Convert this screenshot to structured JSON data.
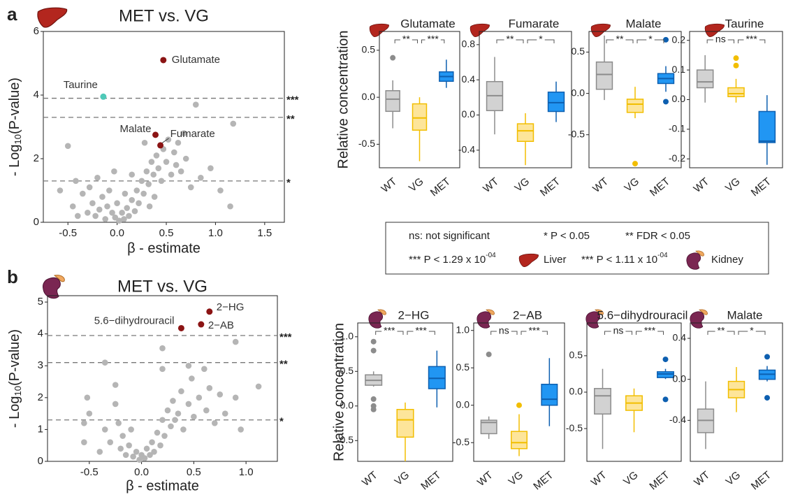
{
  "panel_labels": [
    "a",
    "b"
  ],
  "legend": {
    "items": [
      {
        "text": "ns: not significant"
      },
      {
        "text": "* P < 0.05"
      },
      {
        "text": "** FDR < 0.05"
      },
      {
        "text": "*** P < 1.29 x 10",
        "sup": "-04"
      },
      {
        "text": "Liver"
      },
      {
        "text": "*** P < 1.11 x 10",
        "sup": "-04"
      },
      {
        "text": "Kidney"
      }
    ]
  },
  "chart_data": [
    {
      "type": "volcano",
      "title": "MET vs. VG",
      "xlabel": "β - estimate",
      "ylabel": {
        "text": "- Log",
        "sub": "10",
        "rest": "(P-value)"
      },
      "xlim": [
        -0.75,
        1.7
      ],
      "ylim": [
        0,
        6
      ],
      "xticks": [
        -0.5,
        {
          "value": 0,
          "label": "0.0"
        },
        0.5,
        {
          "value": 1,
          "label": "1.0"
        },
        1.5
      ],
      "yticks": [
        0,
        2,
        4,
        6
      ],
      "thresholds": [
        {
          "y": 3.9,
          "label": "***"
        },
        {
          "y": 3.3,
          "label": "**"
        },
        {
          "y": 1.3,
          "label": "*"
        }
      ],
      "point_color": "#b5b5b5",
      "points": {
        "x": [
          -0.45,
          -0.4,
          -0.35,
          -0.3,
          -0.28,
          -0.25,
          -0.22,
          -0.2,
          -0.18,
          -0.15,
          -0.12,
          -0.1,
          -0.08,
          -0.05,
          -0.02,
          0.0,
          0.02,
          0.05,
          0.07,
          0.1,
          0.12,
          0.15,
          0.18,
          0.2,
          0.22,
          0.25,
          0.27,
          0.3,
          0.32,
          0.35,
          0.37,
          0.4,
          0.42,
          0.45,
          0.47,
          0.5,
          0.52,
          0.55,
          0.58,
          0.6,
          0.62,
          0.65,
          0.7,
          0.75,
          0.8,
          0.85,
          0.95,
          1.05,
          1.15,
          1.18,
          -0.5,
          -0.58,
          -0.42,
          0.28,
          0.33,
          0.38,
          0.15,
          0.08,
          -0.03,
          0.68
        ],
        "y": [
          0.5,
          0.2,
          0.9,
          0.3,
          1.1,
          0.6,
          0.2,
          1.4,
          0.4,
          0.8,
          0.1,
          0.5,
          1.0,
          0.3,
          0.15,
          0.6,
          0.05,
          0.3,
          0.1,
          0.45,
          0.2,
          0.7,
          0.35,
          1.0,
          0.6,
          1.3,
          0.9,
          1.6,
          1.2,
          1.9,
          1.5,
          2.1,
          1.7,
          1.3,
          2.3,
          1.9,
          2.6,
          1.5,
          2.2,
          1.8,
          2.5,
          1.6,
          2.0,
          1.1,
          3.7,
          1.4,
          1.7,
          1.0,
          0.5,
          3.1,
          2.4,
          1.0,
          1.3,
          2.5,
          0.5,
          0.8,
          1.5,
          0.9,
          1.6,
          2.8
        ]
      },
      "highlights": [
        {
          "name": "Glutamate",
          "x": 0.47,
          "y": 5.1,
          "color": "#8b1414"
        },
        {
          "name": "Taurine",
          "x": -0.14,
          "y": 3.95,
          "color": "#4fc9b8"
        },
        {
          "name": "Malate",
          "x": 0.39,
          "y": 2.75,
          "color": "#8b1414"
        },
        {
          "name": "Fumarate",
          "x": 0.44,
          "y": 2.42,
          "color": "#8b1414"
        }
      ]
    },
    {
      "type": "box",
      "title": "Glutamate",
      "ylabel": "Relative concentration",
      "categories": [
        "WT",
        "VG",
        "MET"
      ],
      "fill": [
        "#d2d2d2",
        "#fde59a",
        "#2196f3"
      ],
      "edge": [
        "#8c8c8c",
        "#f2be00",
        "#0d5fb0"
      ],
      "ylim": [
        -0.75,
        0.7
      ],
      "yticks": [
        -0.5,
        {
          "value": 0,
          "label": "0.0"
        },
        0.5
      ],
      "brackets": [
        "**",
        "***"
      ],
      "boxes": [
        {
          "whislo": -0.33,
          "q1": -0.15,
          "med": -0.02,
          "q3": 0.07,
          "whishi": 0.18,
          "fliers": [
            0.42
          ]
        },
        {
          "whislo": -0.68,
          "q1": -0.35,
          "med": -0.22,
          "q3": -0.07,
          "whishi": 0.0,
          "fliers": []
        },
        {
          "whislo": 0.1,
          "q1": 0.17,
          "med": 0.22,
          "q3": 0.27,
          "whishi": 0.4,
          "fliers": []
        }
      ]
    },
    {
      "type": "box",
      "title": "Fumarate",
      "categories": [
        "WT",
        "VG",
        "MET"
      ],
      "fill": [
        "#d2d2d2",
        "#fde59a",
        "#2196f3"
      ],
      "edge": [
        "#8c8c8c",
        "#f2be00",
        "#0d5fb0"
      ],
      "ylim": [
        -0.6,
        0.95
      ],
      "yticks": [
        -0.4,
        {
          "value": 0,
          "label": "0.0"
        },
        0.4,
        0.8
      ],
      "brackets": [
        "**",
        "*"
      ],
      "boxes": [
        {
          "whislo": -0.22,
          "q1": 0.05,
          "med": 0.22,
          "q3": 0.38,
          "whishi": 0.66,
          "fliers": []
        },
        {
          "whislo": -0.57,
          "q1": -0.3,
          "med": -0.18,
          "q3": -0.1,
          "whishi": 0.02,
          "fliers": []
        },
        {
          "whislo": -0.08,
          "q1": 0.04,
          "med": 0.14,
          "q3": 0.26,
          "whishi": 0.38,
          "fliers": []
        }
      ]
    },
    {
      "type": "box",
      "title": "Malate",
      "categories": [
        "WT",
        "VG",
        "MET"
      ],
      "fill": [
        "#d2d2d2",
        "#fde59a",
        "#2196f3"
      ],
      "edge": [
        "#8c8c8c",
        "#f2be00",
        "#0d5fb0"
      ],
      "ylim": [
        -0.9,
        0.75
      ],
      "yticks": [
        -0.5,
        {
          "value": 0,
          "label": "0.0"
        },
        0.5
      ],
      "brackets": [
        "**",
        "*"
      ],
      "boxes": [
        {
          "whislo": -0.08,
          "q1": 0.05,
          "med": 0.23,
          "q3": 0.38,
          "whishi": 0.7,
          "fliers": []
        },
        {
          "whislo": -0.3,
          "q1": -0.23,
          "med": -0.13,
          "q3": -0.07,
          "whishi": 0.08,
          "fliers": [
            -0.85
          ]
        },
        {
          "whislo": 0.02,
          "q1": 0.12,
          "med": 0.18,
          "q3": 0.24,
          "whishi": 0.33,
          "fliers": [
            0.65,
            -0.1
          ]
        }
      ]
    },
    {
      "type": "box",
      "title": "Taurine",
      "categories": [
        "WT",
        "VG",
        "MET"
      ],
      "fill": [
        "#d2d2d2",
        "#fde59a",
        "#2196f3"
      ],
      "edge": [
        "#8c8c8c",
        "#f2be00",
        "#0d5fb0"
      ],
      "ylim": [
        -0.23,
        0.23
      ],
      "yticks": [
        -0.2,
        -0.1,
        {
          "value": 0,
          "label": "0.0"
        },
        0.1,
        0.2
      ],
      "brackets": [
        "ns",
        "***"
      ],
      "boxes": [
        {
          "whislo": -0.01,
          "q1": 0.04,
          "med": 0.06,
          "q3": 0.1,
          "whishi": 0.15,
          "fliers": []
        },
        {
          "whislo": -0.01,
          "q1": 0.01,
          "med": 0.02,
          "q3": 0.04,
          "whishi": 0.07,
          "fliers": [
            0.115,
            0.14
          ]
        },
        {
          "whislo": -0.22,
          "q1": -0.145,
          "med": -0.14,
          "q3": -0.04,
          "whishi": 0.015,
          "fliers": []
        }
      ]
    },
    {
      "type": "volcano",
      "title": "MET vs. VG",
      "xlabel": "β - estimate",
      "ylabel": {
        "text": "- Log",
        "sub": "10",
        "rest": "(P-value)"
      },
      "xlim": [
        -0.9,
        1.3
      ],
      "ylim": [
        0,
        5.2
      ],
      "xticks": [
        -0.5,
        {
          "value": 0,
          "label": "0.0"
        },
        0.5,
        {
          "value": 1,
          "label": "1.0"
        }
      ],
      "yticks": [
        0,
        1,
        2,
        3,
        4,
        5
      ],
      "thresholds": [
        {
          "y": 3.95,
          "label": "***"
        },
        {
          "y": 3.1,
          "label": "**"
        },
        {
          "y": 1.3,
          "label": "*"
        }
      ],
      "point_color": "#b5b5b5",
      "points": {
        "x": [
          -0.55,
          -0.55,
          -0.52,
          -0.5,
          -0.4,
          -0.35,
          -0.3,
          -0.25,
          -0.22,
          -0.2,
          -0.18,
          -0.15,
          -0.12,
          -0.1,
          -0.08,
          -0.05,
          -0.02,
          0.0,
          0.03,
          0.05,
          0.08,
          0.1,
          0.12,
          0.15,
          0.18,
          0.2,
          0.22,
          0.25,
          0.28,
          0.3,
          0.32,
          0.35,
          0.38,
          0.4,
          0.45,
          0.48,
          0.5,
          0.55,
          0.6,
          0.62,
          0.65,
          0.7,
          0.75,
          0.8,
          0.9,
          0.9,
          0.95,
          1.12,
          0.2,
          0.2,
          -0.35,
          0.45,
          -0.25
        ],
        "y": [
          1.2,
          0.6,
          2.0,
          1.5,
          0.3,
          1.0,
          0.6,
          1.8,
          1.2,
          0.4,
          0.8,
          0.2,
          0.5,
          1.0,
          0.15,
          0.3,
          0.05,
          0.2,
          0.1,
          0.4,
          0.2,
          0.6,
          0.3,
          0.9,
          0.5,
          1.3,
          0.8,
          1.6,
          1.1,
          1.9,
          1.3,
          1.5,
          2.2,
          1.0,
          1.8,
          2.6,
          1.4,
          2.0,
          2.9,
          1.6,
          2.3,
          1.2,
          2.1,
          1.5,
          3.75,
          2.0,
          1.0,
          2.35,
          3.55,
          2.9,
          3.1,
          3.0,
          2.4
        ]
      },
      "highlights": [
        {
          "name": "2−HG",
          "x": 0.65,
          "y": 4.7,
          "color": "#8b1414"
        },
        {
          "name": "2−AB",
          "x": 0.57,
          "y": 4.3,
          "color": "#8b1414"
        },
        {
          "name": "5.6−dihydrouracil",
          "x": 0.38,
          "y": 4.18,
          "color": "#8b1414"
        }
      ]
    },
    {
      "type": "box",
      "title": "2−HG",
      "ylabel": "Relative concentration",
      "categories": [
        "WT",
        "VG",
        "MET"
      ],
      "fill": [
        "#d2d2d2",
        "#fde59a",
        "#2196f3"
      ],
      "edge": [
        "#8c8c8c",
        "#f2be00",
        "#0d5fb0"
      ],
      "ylim": [
        -0.8,
        1.2
      ],
      "yticks": [
        -0.5,
        {
          "value": 0,
          "label": "0.0"
        },
        0.5,
        {
          "value": 1,
          "label": "1.0"
        }
      ],
      "brackets": [
        "***",
        "***"
      ],
      "boxes": [
        {
          "whislo": 0.28,
          "q1": 0.3,
          "med": 0.37,
          "q3": 0.45,
          "whishi": 0.5,
          "fliers": [
            0.93,
            0.8,
            0.1,
            0.0,
            -0.05
          ]
        },
        {
          "whislo": -0.8,
          "q1": -0.45,
          "med": -0.2,
          "q3": -0.05,
          "whishi": 0.05,
          "fliers": []
        },
        {
          "whislo": -0.02,
          "q1": 0.25,
          "med": 0.4,
          "q3": 0.57,
          "whishi": 0.8,
          "fliers": []
        }
      ]
    },
    {
      "type": "box",
      "title": "2−AB",
      "categories": [
        "WT",
        "VG",
        "MET"
      ],
      "fill": [
        "#d2d2d2",
        "#fde59a",
        "#2196f3"
      ],
      "edge": [
        "#8c8c8c",
        "#f2be00",
        "#0d5fb0"
      ],
      "ylim": [
        -0.75,
        1.1
      ],
      "yticks": [
        -0.5,
        {
          "value": 0,
          "label": "0.0"
        },
        0.5,
        {
          "value": 1,
          "label": "1.0"
        }
      ],
      "brackets": [
        "ns",
        "***"
      ],
      "boxes": [
        {
          "whislo": -0.45,
          "q1": -0.38,
          "med": -0.23,
          "q3": -0.2,
          "whishi": -0.15,
          "fliers": [
            0.68
          ]
        },
        {
          "whislo": -0.68,
          "q1": -0.58,
          "med": -0.5,
          "q3": -0.35,
          "whishi": -0.12,
          "fliers": [
            0.0
          ]
        },
        {
          "whislo": -0.28,
          "q1": 0.0,
          "med": 0.08,
          "q3": 0.28,
          "whishi": 0.63,
          "fliers": []
        }
      ]
    },
    {
      "type": "box",
      "title": "5.6−dihydrouracil",
      "categories": [
        "WT",
        "VG",
        "MET"
      ],
      "fill": [
        "#d2d2d2",
        "#fde59a",
        "#2196f3"
      ],
      "edge": [
        "#8c8c8c",
        "#f2be00",
        "#0d5fb0"
      ],
      "ylim": [
        -0.95,
        0.95
      ],
      "yticks": [
        -0.5,
        {
          "value": 0,
          "label": "0.0"
        },
        0.5
      ],
      "brackets": [
        "ns",
        "***"
      ],
      "boxes": [
        {
          "whislo": -0.78,
          "q1": -0.3,
          "med": -0.05,
          "q3": 0.05,
          "whishi": 0.32,
          "fliers": []
        },
        {
          "whislo": -0.55,
          "q1": -0.25,
          "med": -0.15,
          "q3": -0.05,
          "whishi": 0.05,
          "fliers": []
        },
        {
          "whislo": 0.18,
          "q1": 0.2,
          "med": 0.25,
          "q3": 0.28,
          "whishi": 0.32,
          "fliers": [
            0.45,
            -0.1
          ]
        }
      ]
    },
    {
      "type": "box",
      "title": "Malate",
      "categories": [
        "WT",
        "VG",
        "MET"
      ],
      "fill": [
        "#d2d2d2",
        "#fde59a",
        "#2196f3"
      ],
      "edge": [
        "#8c8c8c",
        "#f2be00",
        "#0d5fb0"
      ],
      "ylim": [
        -0.8,
        0.55
      ],
      "yticks": [
        -0.4,
        {
          "value": 0,
          "label": "0.0"
        },
        0.4
      ],
      "brackets": [
        "**",
        "*"
      ],
      "boxes": [
        {
          "whislo": -0.68,
          "q1": -0.52,
          "med": -0.4,
          "q3": -0.29,
          "whishi": -0.02,
          "fliers": []
        },
        {
          "whislo": -0.32,
          "q1": -0.18,
          "med": -0.1,
          "q3": -0.02,
          "whishi": 0.12,
          "fliers": []
        },
        {
          "whislo": -0.02,
          "q1": 0.0,
          "med": 0.05,
          "q3": 0.09,
          "whishi": 0.13,
          "fliers": [
            0.22,
            -0.18
          ]
        }
      ]
    }
  ]
}
